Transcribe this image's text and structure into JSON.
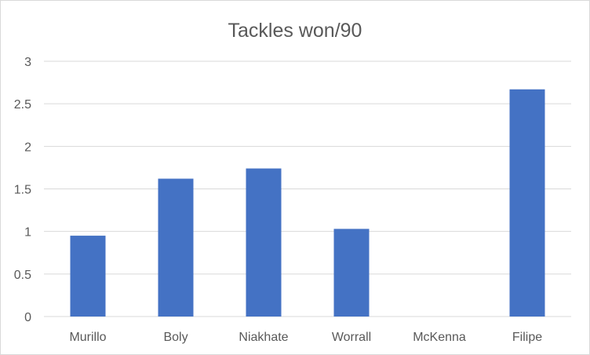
{
  "chart_data": {
    "type": "bar",
    "title": "Tackles won/90",
    "xlabel": "",
    "ylabel": "",
    "categories": [
      "Murillo",
      "Boly",
      "Niakhate",
      "Worrall",
      "McKenna",
      "Filipe"
    ],
    "values": [
      0.95,
      1.62,
      1.74,
      1.03,
      0,
      2.67
    ],
    "ylim": [
      0,
      3
    ],
    "yticks": [
      "0",
      "0.5",
      "1",
      "1.5",
      "2",
      "2.5",
      "3"
    ],
    "grid": true,
    "legend": "none",
    "colors": {
      "bar": "#4472c4",
      "grid": "#d9d9d9",
      "text": "#595959",
      "border": "#d9d9d9",
      "background": "#ffffff"
    }
  }
}
